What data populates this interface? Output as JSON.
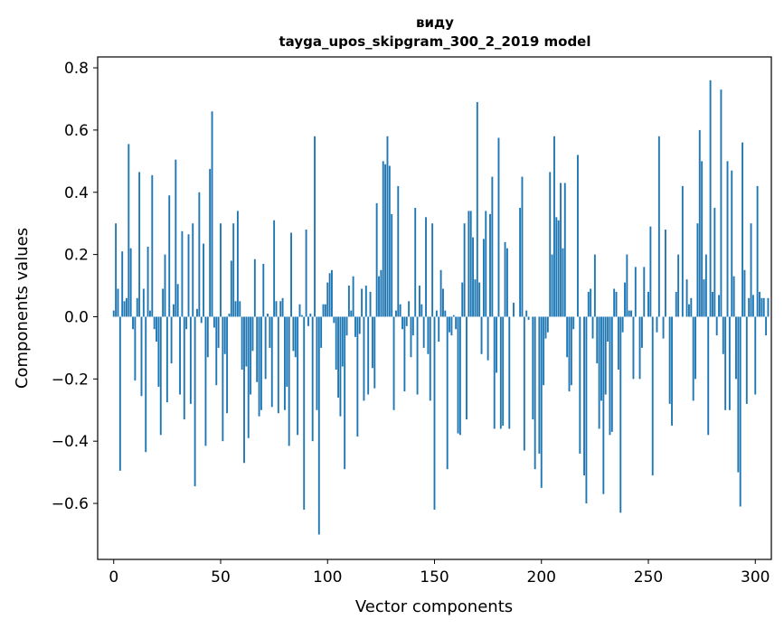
{
  "chart_data": {
    "type": "bar",
    "title_line1": "виду",
    "title_line2": "tayga_upos_skipgram_300_2_2019 model",
    "xlabel": "Vector components",
    "ylabel": "Components values",
    "xlim": [
      -7.5,
      307.5
    ],
    "ylim": [
      -0.78,
      0.835
    ],
    "xticks": [
      0,
      50,
      100,
      150,
      200,
      250,
      300
    ],
    "xtick_labels": [
      "0",
      "50",
      "100",
      "150",
      "200",
      "250",
      "300"
    ],
    "yticks": [
      -0.6,
      -0.4,
      -0.2,
      0.0,
      0.2,
      0.4,
      0.6,
      0.8
    ],
    "ytick_labels": [
      "−0.6",
      "−0.4",
      "−0.2",
      "0.0",
      "0.2",
      "0.4",
      "0.6",
      "0.8"
    ],
    "bar_color": "#1f77b4",
    "values": [
      0.02,
      0.3,
      0.09,
      -0.495,
      0.21,
      0.05,
      0.06,
      0.555,
      0.22,
      -0.04,
      -0.205,
      0.06,
      0.465,
      -0.255,
      0.09,
      -0.435,
      0.225,
      0.02,
      0.455,
      -0.04,
      -0.08,
      -0.225,
      -0.38,
      0.09,
      0.2,
      -0.275,
      0.39,
      -0.15,
      0.04,
      0.505,
      0.105,
      -0.25,
      0.275,
      -0.33,
      -0.04,
      0.265,
      -0.28,
      0.3,
      -0.545,
      0.025,
      0.4,
      -0.02,
      0.235,
      -0.415,
      -0.13,
      0.475,
      0.66,
      -0.035,
      -0.22,
      -0.1,
      0.3,
      -0.4,
      -0.12,
      -0.31,
      0.01,
      0.18,
      0.3,
      0.05,
      0.34,
      0.05,
      -0.17,
      -0.47,
      -0.16,
      -0.39,
      -0.25,
      -0.11,
      0.185,
      -0.21,
      -0.32,
      -0.3,
      0.17,
      -0.2,
      0.01,
      -0.1,
      -0.29,
      0.31,
      0.05,
      -0.31,
      0.05,
      0.06,
      -0.3,
      -0.225,
      -0.415,
      0.27,
      -0.11,
      -0.13,
      -0.38,
      0.04,
      0.005,
      -0.62,
      0.28,
      -0.03,
      0.01,
      -0.4,
      0.58,
      -0.3,
      -0.7,
      -0.1,
      0.04,
      0.04,
      0.11,
      0.14,
      0.15,
      -0.02,
      -0.17,
      -0.26,
      -0.32,
      -0.16,
      -0.49,
      -0.06,
      0.1,
      0.02,
      0.13,
      -0.065,
      -0.385,
      -0.055,
      0.09,
      -0.27,
      0.1,
      -0.25,
      0.08,
      -0.165,
      -0.23,
      0.365,
      0.13,
      0.15,
      0.5,
      0.49,
      0.58,
      0.485,
      0.33,
      -0.3,
      0.02,
      0.42,
      0.04,
      -0.04,
      -0.24,
      -0.03,
      0.05,
      -0.13,
      -0.06,
      0.35,
      -0.25,
      0.1,
      0.04,
      -0.1,
      0.32,
      -0.12,
      -0.27,
      0.3,
      -0.62,
      0.02,
      -0.08,
      0.15,
      0.09,
      0.02,
      -0.49,
      -0.05,
      -0.06,
      0.005,
      -0.04,
      -0.375,
      -0.38,
      0.11,
      0.3,
      -0.33,
      0.34,
      0.34,
      0.255,
      0.12,
      0.69,
      0.11,
      -0.12,
      0.25,
      0.34,
      -0.14,
      0.33,
      0.45,
      -0.36,
      -0.18,
      0.575,
      -0.36,
      -0.35,
      0.24,
      0.22,
      -0.36,
      0.0,
      0.045,
      0.0,
      0.0,
      0.35,
      0.45,
      -0.43,
      0.02,
      -0.01,
      0.0,
      -0.33,
      -0.49,
      0.0,
      -0.44,
      -0.55,
      -0.22,
      -0.07,
      -0.05,
      0.465,
      0.2,
      0.58,
      0.32,
      0.31,
      0.43,
      0.22,
      0.43,
      -0.13,
      -0.24,
      -0.22,
      -0.04,
      0.0,
      0.52,
      -0.44,
      0.0,
      -0.51,
      -0.6,
      0.08,
      0.09,
      -0.07,
      0.2,
      -0.15,
      -0.36,
      -0.27,
      -0.57,
      -0.25,
      -0.08,
      -0.38,
      -0.37,
      0.09,
      0.08,
      -0.17,
      -0.63,
      -0.05,
      0.11,
      0.2,
      0.02,
      0.02,
      -0.2,
      0.16,
      0.0,
      -0.2,
      -0.1,
      0.16,
      0.0,
      0.08,
      0.29,
      -0.51,
      0.0,
      -0.05,
      0.58,
      0.0,
      -0.07,
      0.28,
      0.0,
      -0.28,
      -0.35,
      0.0,
      0.08,
      0.2,
      0.0,
      0.42,
      0.0,
      0.12,
      0.04,
      0.06,
      -0.27,
      -0.2,
      0.3,
      0.6,
      0.5,
      0.12,
      0.2,
      -0.38,
      0.76,
      0.08,
      0.35,
      -0.06,
      0.07,
      0.73,
      -0.12,
      -0.3,
      0.5,
      -0.3,
      0.47,
      0.13,
      -0.2,
      -0.5,
      -0.61,
      0.56,
      0.15,
      -0.28,
      0.06,
      0.3,
      0.07,
      -0.25,
      0.42,
      0.08,
      0.06,
      0.06,
      -0.06,
      0.06
    ]
  }
}
